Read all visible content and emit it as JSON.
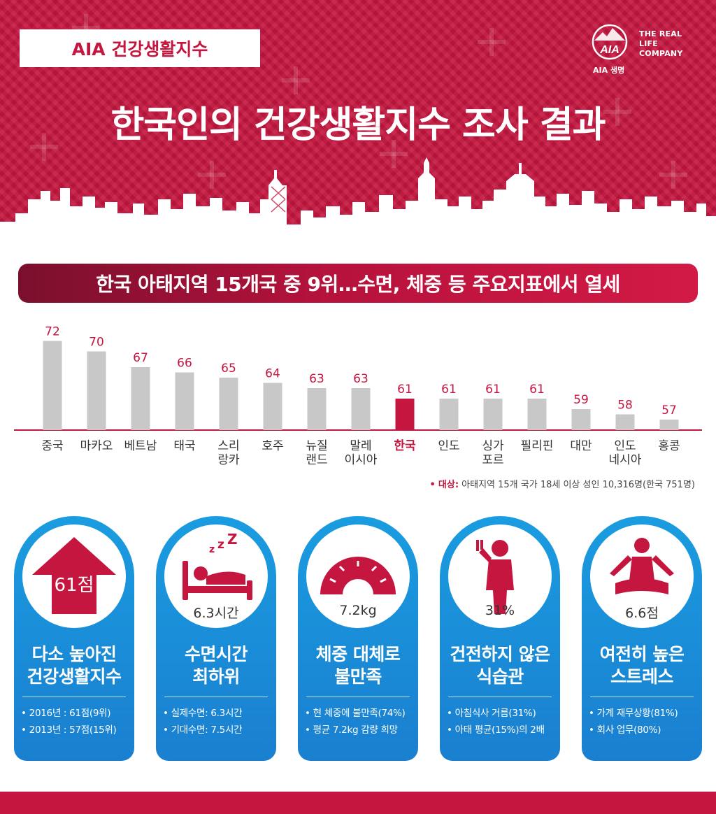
{
  "header": {
    "tag": "AIA 건강생활지수",
    "title": "한국인의 건강생활지수 조사 결과",
    "logo": {
      "tagline_line1": "THE REAL LIFE",
      "tagline_line2": "COMPANY",
      "sub": "AIA 생명",
      "mark": "AIA"
    }
  },
  "subtitle": "한국 아태지역 15개국 중 9위…수면, 체중 등 주요지표에서 열세",
  "chart_data": {
    "type": "bar",
    "title": "",
    "xlabel": "",
    "ylabel": "",
    "categories": [
      "중국",
      "마카오",
      "베트남",
      "태국",
      "스리\n랑카",
      "호주",
      "뉴질\n랜드",
      "말레\n이시아",
      "한국",
      "인도",
      "싱가\n포르",
      "필리핀",
      "대만",
      "인도\n네시아",
      "홍콩"
    ],
    "values": [
      72,
      70,
      67,
      66,
      65,
      64,
      63,
      63,
      61,
      61,
      61,
      61,
      59,
      58,
      57
    ],
    "highlight": "한국",
    "colors": {
      "bar": "#c8c8c8",
      "highlight": "#c5163f",
      "baseline": "#c5163f",
      "value_label": "#c5163f",
      "category_label": "#333333"
    },
    "ylim": [
      55,
      73
    ],
    "grid": false
  },
  "note": {
    "label": "대상:",
    "text": "아태지역 15개 국가 18세 이상 성인 10,316명(한국 751명)"
  },
  "cards": [
    {
      "icon": "arrow-up-icon",
      "value": "61점",
      "heading": "다소 높아진\n건강생활지수",
      "bullets": [
        "2016년 : 61점(9위)",
        "2013년 : 57점(15위)"
      ]
    },
    {
      "icon": "sleeping-bed-icon",
      "value": "6.3시간",
      "heading": "수면시간\n최하위",
      "bullets": [
        "실제수면: 6.3시간",
        "기대수면: 7.5시간"
      ]
    },
    {
      "icon": "scale-gauge-icon",
      "value": "7.2kg",
      "heading": "체중 대체로\n불만족",
      "bullets": [
        "현 체중에 불만족(74%)",
        "평균 7.2kg 감량 희망"
      ]
    },
    {
      "icon": "person-eating-icon",
      "value": "31%",
      "heading": "건전하지 않은\n식습관",
      "bullets": [
        "아침식사 거름(31%)",
        "아태 평균(15%)의 2배"
      ]
    },
    {
      "icon": "meditation-icon",
      "value": "6.6점",
      "heading": "여전히 높은\n스트레스",
      "bullets": [
        "가계 재무상황(81%)",
        "회사 업무(80%)"
      ]
    }
  ],
  "colors": {
    "brand": "#c5163f",
    "card_blue": "#1a8ad8",
    "icon_red": "#c5163f"
  }
}
